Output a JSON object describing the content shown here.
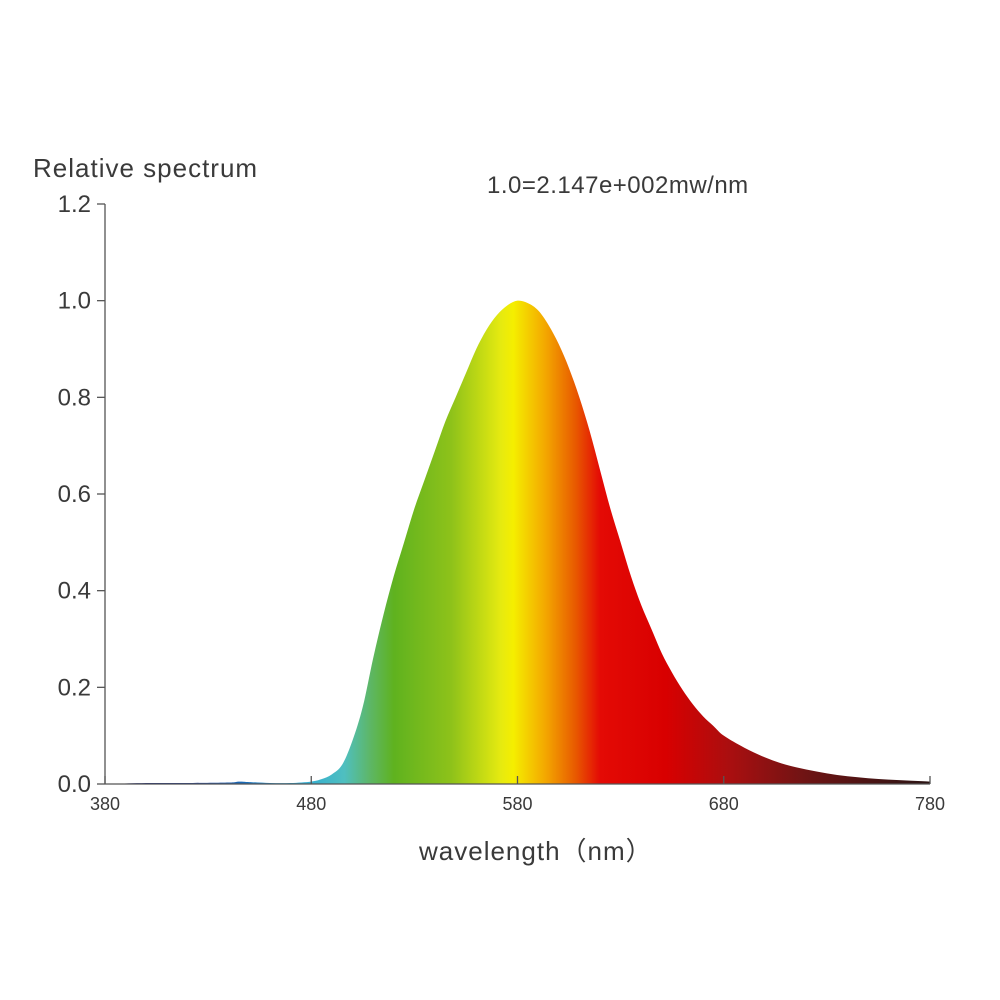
{
  "chart_data": {
    "type": "area",
    "title": "",
    "ylabel": "Relative spectrum",
    "xlabel": "wavelength（nm）",
    "annotation": "1.0=2.147e+002mw/nm",
    "xlim": [
      380,
      780
    ],
    "ylim": [
      0,
      1.2
    ],
    "xticks": [
      380,
      480,
      580,
      680,
      780
    ],
    "xtick_labels": [
      "380",
      "480",
      "580",
      "680",
      "780"
    ],
    "yticks": [
      0,
      0.2,
      0.4,
      0.6,
      0.8,
      1.0,
      1.2
    ],
    "ytick_labels": [
      "0.0",
      "0.2",
      "0.4",
      "0.6",
      "0.8",
      "1.0",
      "1.2"
    ],
    "grid": false,
    "legend": "none",
    "fill": "visible spectrum color gradient",
    "series": [
      {
        "x": [
          380,
          400,
          420,
          440,
          445,
          450,
          460,
          470,
          480,
          485,
          490,
          495,
          500,
          505,
          510,
          515,
          520,
          525,
          530,
          535,
          540,
          545,
          550,
          555,
          560,
          565,
          570,
          575,
          580,
          585,
          590,
          595,
          600,
          605,
          610,
          615,
          620,
          625,
          630,
          635,
          640,
          645,
          650,
          655,
          660,
          665,
          670,
          675,
          680,
          690,
          700,
          710,
          720,
          730,
          740,
          750,
          760,
          770,
          780
        ],
        "y": [
          0.0,
          0.002,
          0.002,
          0.003,
          0.005,
          0.004,
          0.002,
          0.002,
          0.005,
          0.01,
          0.02,
          0.04,
          0.09,
          0.16,
          0.26,
          0.35,
          0.43,
          0.5,
          0.57,
          0.63,
          0.69,
          0.75,
          0.8,
          0.85,
          0.9,
          0.94,
          0.97,
          0.99,
          1.0,
          0.995,
          0.98,
          0.95,
          0.91,
          0.86,
          0.8,
          0.73,
          0.65,
          0.57,
          0.5,
          0.43,
          0.37,
          0.32,
          0.27,
          0.23,
          0.195,
          0.165,
          0.14,
          0.12,
          0.1,
          0.075,
          0.055,
          0.04,
          0.03,
          0.022,
          0.016,
          0.012,
          0.009,
          0.007,
          0.005
        ]
      }
    ]
  }
}
